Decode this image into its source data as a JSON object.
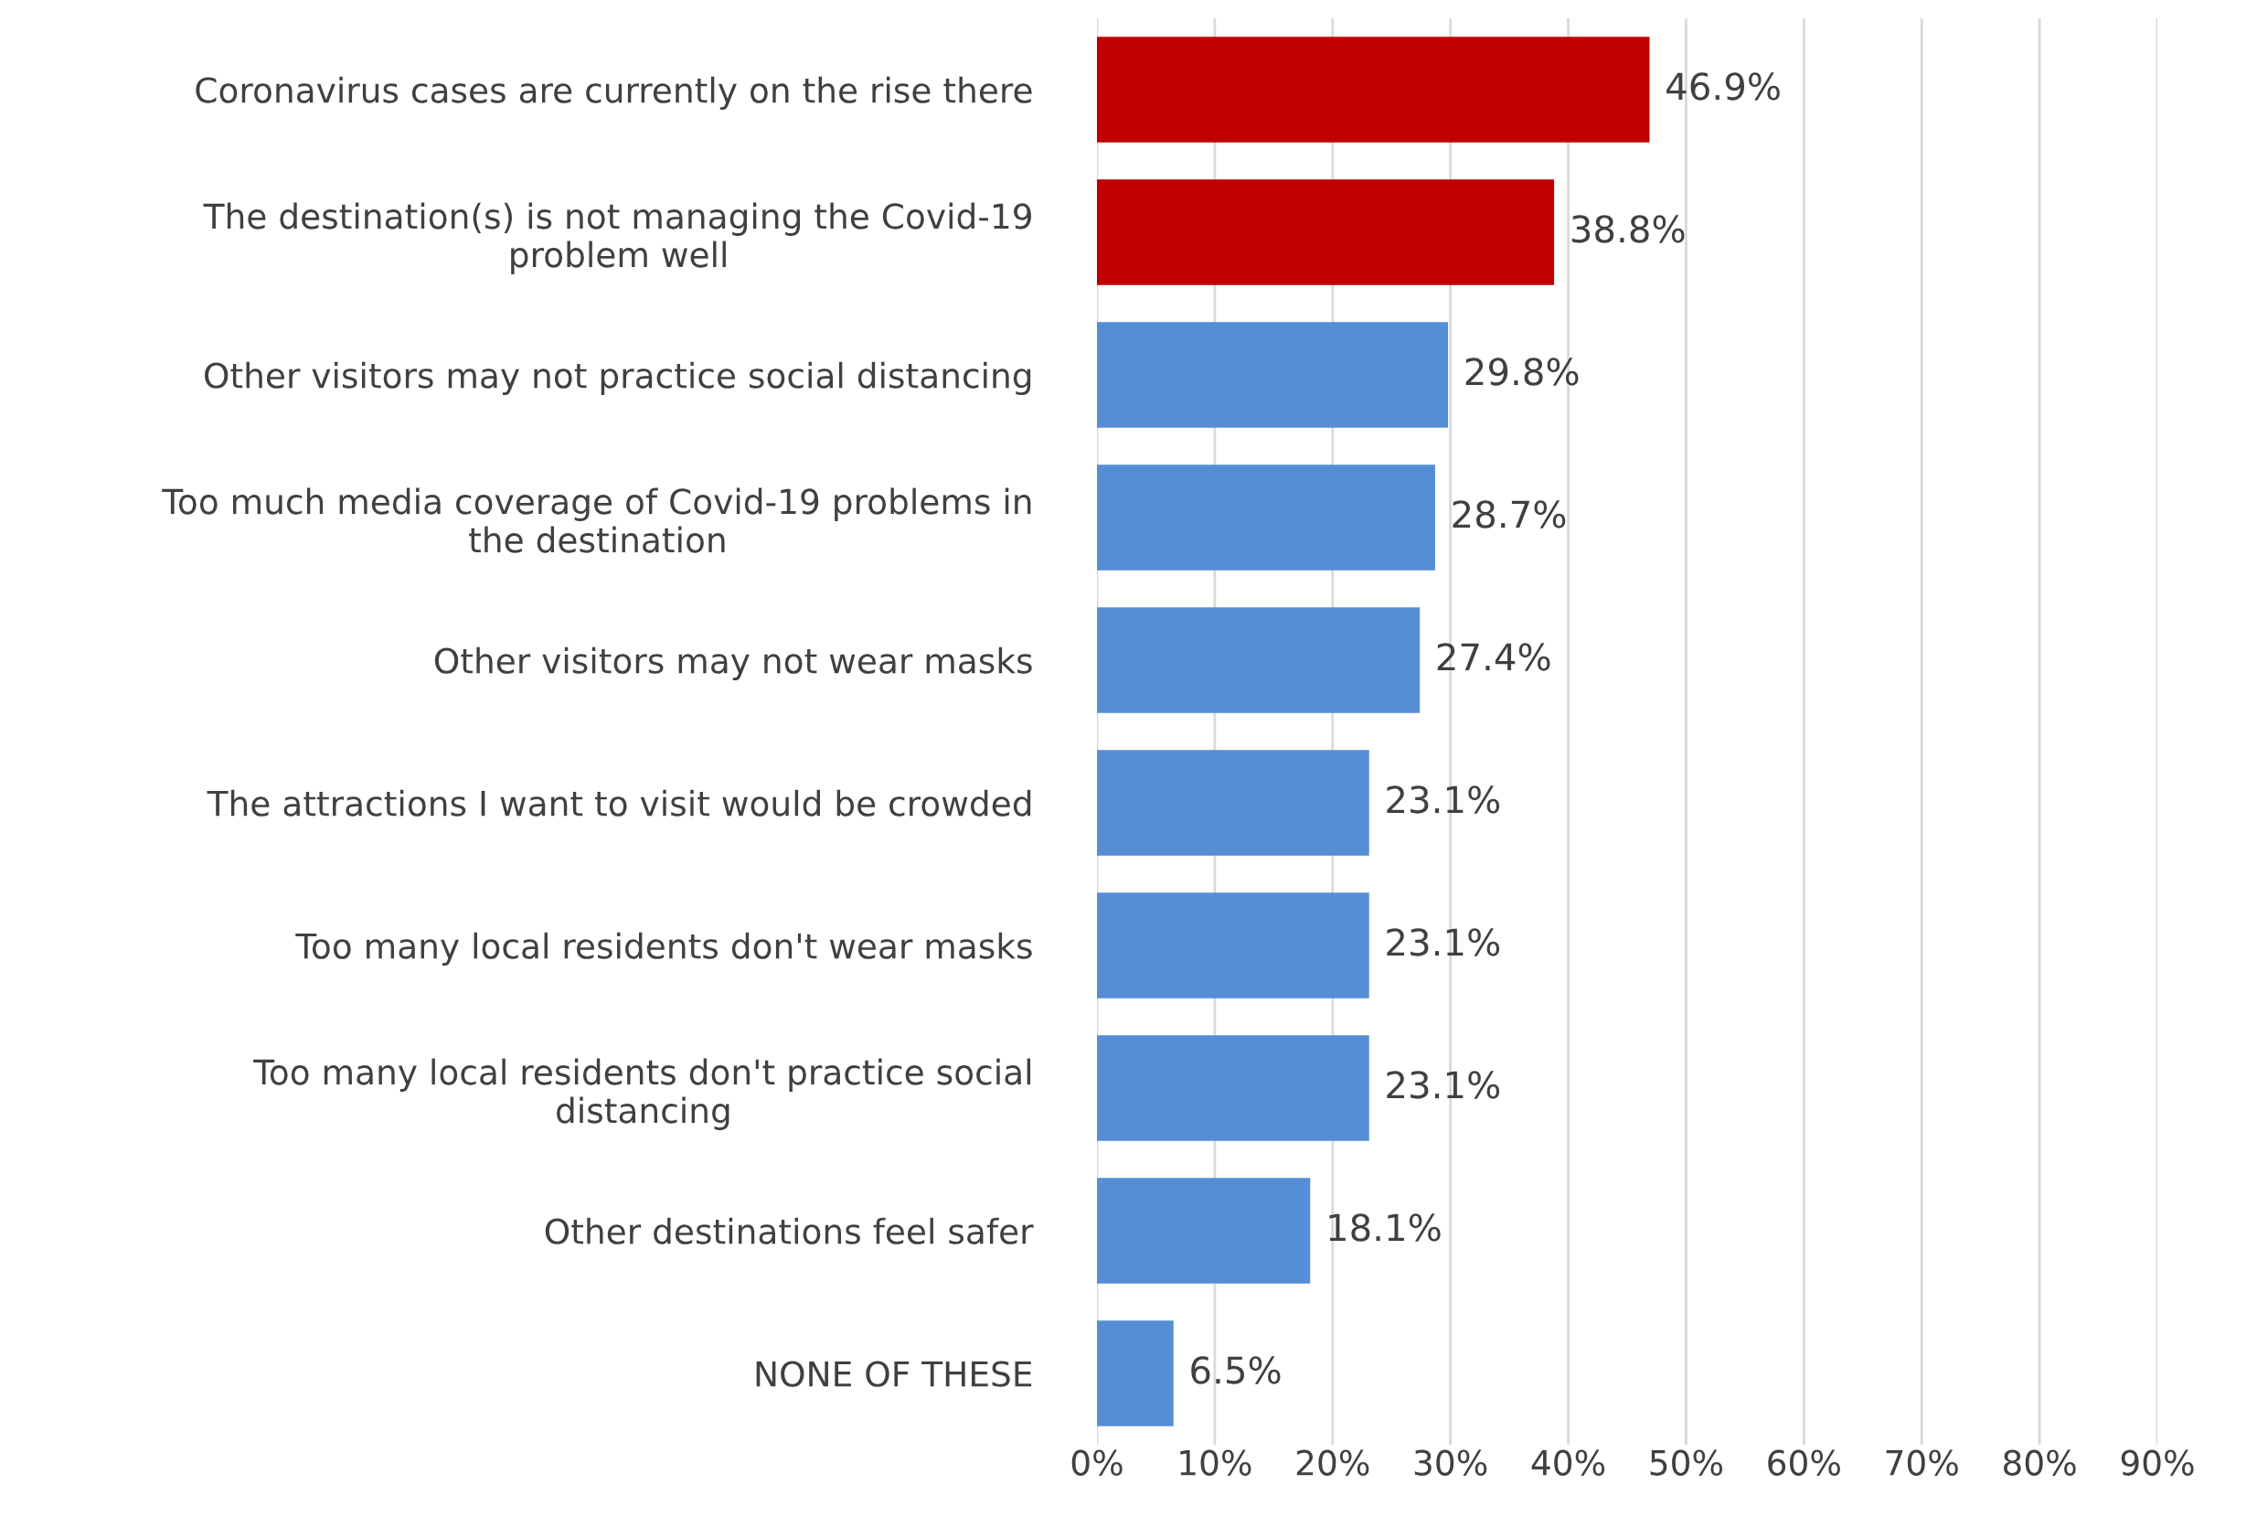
{
  "chart_data": {
    "type": "bar",
    "orientation": "horizontal",
    "categories": [
      "Coronavirus cases are currently on the rise there",
      "The destination(s) is not managing the Covid-19\nproblem well",
      "Other visitors may not practice social distancing",
      "Too much media coverage of Covid-19 problems in\nthe destination",
      "Other visitors may not wear masks",
      "The attractions I want to visit would be crowded",
      "Too many local residents don't wear masks",
      "Too many local residents don't practice social\ndistancing",
      "Other destinations feel safer",
      "NONE OF THESE"
    ],
    "values": [
      46.9,
      38.8,
      29.8,
      28.7,
      27.4,
      23.1,
      23.1,
      23.1,
      18.1,
      6.5
    ],
    "value_labels": [
      "46.9%",
      "38.8%",
      "29.8%",
      "28.7%",
      "27.4%",
      "23.1%",
      "23.1%",
      "23.1%",
      "18.1%",
      "6.5%"
    ],
    "colors": [
      "#c00000",
      "#c00000",
      "#558ed5",
      "#558ed5",
      "#558ed5",
      "#558ed5",
      "#558ed5",
      "#558ed5",
      "#558ed5",
      "#558ed5"
    ],
    "xlim": [
      0,
      90
    ],
    "xticks": [
      {
        "value": 0,
        "label": "0%"
      },
      {
        "value": 10,
        "label": "10%"
      },
      {
        "value": 20,
        "label": "20%"
      },
      {
        "value": 30,
        "label": "30%"
      },
      {
        "value": 40,
        "label": "40%"
      },
      {
        "value": 50,
        "label": "50%"
      },
      {
        "value": 60,
        "label": "60%"
      },
      {
        "value": 70,
        "label": "70%"
      },
      {
        "value": 80,
        "label": "80%"
      },
      {
        "value": 90,
        "label": "90%"
      }
    ],
    "grid": "x",
    "legend": false
  }
}
